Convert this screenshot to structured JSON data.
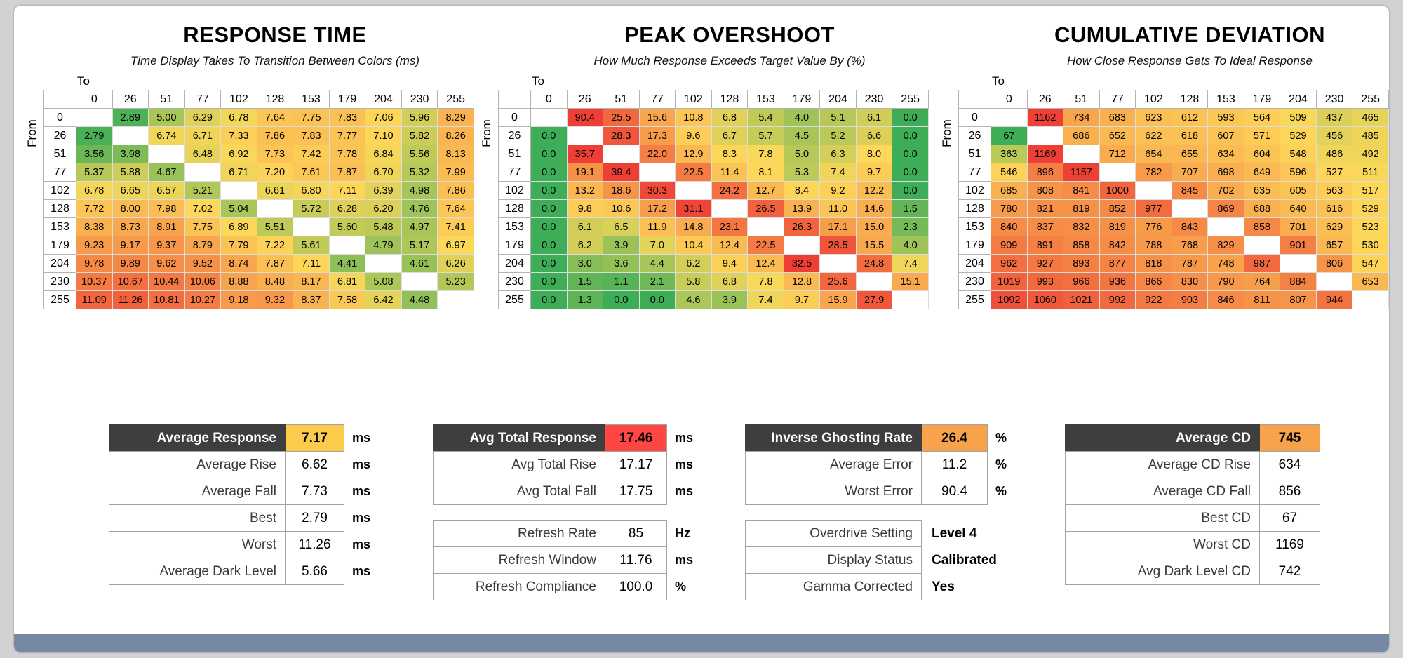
{
  "page": {
    "background_color": "#d2d2d2",
    "panel_color": "#ffffff",
    "footer_bar_color": "#7589a5"
  },
  "chart_data": [
    {
      "type": "heatmap",
      "title": "RESPONSE TIME",
      "subtitle": "Time Display Takes To Transition Between Colors (ms)",
      "x_axis_label": "To",
      "y_axis_label": "From",
      "categories": [
        "0",
        "26",
        "51",
        "77",
        "102",
        "128",
        "153",
        "179",
        "204",
        "230",
        "255"
      ],
      "unit": "ms",
      "decimals": 2,
      "color_scale": {
        "min": 2.5,
        "mid": 7.0,
        "max": 12.5,
        "low_color": "#3ead57",
        "mid_color": "#fdd859",
        "high_color": "#ee3e35"
      },
      "values": [
        [
          null,
          2.89,
          5.0,
          6.29,
          6.78,
          7.64,
          7.75,
          7.83,
          7.06,
          5.96,
          8.29
        ],
        [
          2.79,
          null,
          6.74,
          6.71,
          7.33,
          7.86,
          7.83,
          7.77,
          7.1,
          5.82,
          8.26
        ],
        [
          3.56,
          3.98,
          null,
          6.48,
          6.92,
          7.73,
          7.42,
          7.78,
          6.84,
          5.56,
          8.13
        ],
        [
          5.37,
          5.88,
          4.67,
          null,
          6.71,
          7.2,
          7.61,
          7.87,
          6.7,
          5.32,
          7.99
        ],
        [
          6.78,
          6.65,
          6.57,
          5.21,
          null,
          6.61,
          6.8,
          7.11,
          6.39,
          4.98,
          7.86
        ],
        [
          7.72,
          8.0,
          7.98,
          7.02,
          5.04,
          null,
          5.72,
          6.28,
          6.2,
          4.76,
          7.64
        ],
        [
          8.38,
          8.73,
          8.91,
          7.75,
          6.89,
          5.51,
          null,
          5.6,
          5.48,
          4.97,
          7.41
        ],
        [
          9.23,
          9.17,
          9.37,
          8.79,
          7.79,
          7.22,
          5.61,
          null,
          4.79,
          5.17,
          6.97
        ],
        [
          9.78,
          9.89,
          9.62,
          9.52,
          8.74,
          7.87,
          7.11,
          4.41,
          null,
          4.61,
          6.26
        ],
        [
          10.37,
          10.67,
          10.44,
          10.06,
          8.88,
          8.48,
          8.17,
          6.81,
          5.08,
          null,
          5.23
        ],
        [
          11.09,
          11.26,
          10.81,
          10.27,
          9.18,
          9.32,
          8.37,
          7.58,
          6.42,
          4.48,
          null
        ]
      ]
    },
    {
      "type": "heatmap",
      "title": "PEAK OVERSHOOT",
      "subtitle": "How Much Response Exceeds Target Value By (%)",
      "x_axis_label": "To",
      "y_axis_label": "From",
      "categories": [
        "0",
        "26",
        "51",
        "77",
        "102",
        "128",
        "153",
        "179",
        "204",
        "230",
        "255"
      ],
      "unit": "%",
      "decimals": 1,
      "color_scale": {
        "min": 0,
        "mid": 8,
        "max": 32,
        "low_color": "#3ead57",
        "mid_color": "#fdd859",
        "high_color": "#ee3e35"
      },
      "values": [
        [
          null,
          90.4,
          25.5,
          15.6,
          10.8,
          6.8,
          5.4,
          4.0,
          5.1,
          6.1,
          0.0
        ],
        [
          0.0,
          null,
          28.3,
          17.3,
          9.6,
          6.7,
          5.7,
          4.5,
          5.2,
          6.6,
          0.0
        ],
        [
          0.0,
          35.7,
          null,
          22.0,
          12.9,
          8.3,
          7.8,
          5.0,
          6.3,
          8.0,
          0.0
        ],
        [
          0.0,
          19.1,
          39.4,
          null,
          22.5,
          11.4,
          8.1,
          5.3,
          7.4,
          9.7,
          0.0
        ],
        [
          0.0,
          13.2,
          18.6,
          30.3,
          null,
          24.2,
          12.7,
          8.4,
          9.2,
          12.2,
          0.0
        ],
        [
          0.0,
          9.8,
          10.6,
          17.2,
          31.1,
          null,
          26.5,
          13.9,
          11.0,
          14.6,
          1.5
        ],
        [
          0.0,
          6.1,
          6.5,
          11.9,
          14.8,
          23.1,
          null,
          26.3,
          17.1,
          15.0,
          2.3
        ],
        [
          0.0,
          6.2,
          3.9,
          7.0,
          10.4,
          12.4,
          22.5,
          null,
          28.5,
          15.5,
          4.0
        ],
        [
          0.0,
          3.0,
          3.6,
          4.4,
          6.2,
          9.4,
          12.4,
          32.5,
          null,
          24.8,
          7.4
        ],
        [
          0.0,
          1.5,
          1.1,
          2.1,
          5.8,
          6.8,
          7.8,
          12.8,
          25.6,
          null,
          15.1
        ],
        [
          0.0,
          1.3,
          0.0,
          0.0,
          4.6,
          3.9,
          7.4,
          9.7,
          15.9,
          27.9,
          null
        ]
      ]
    },
    {
      "type": "heatmap",
      "title": "CUMULATIVE DEVIATION",
      "subtitle": "How Close Response Gets To Ideal Response",
      "x_axis_label": "To",
      "y_axis_label": "From",
      "categories": [
        "0",
        "26",
        "51",
        "77",
        "102",
        "128",
        "153",
        "179",
        "204",
        "230",
        "255"
      ],
      "unit": "",
      "decimals": 0,
      "color_scale": {
        "min": 67,
        "mid": 520,
        "max": 1170,
        "low_color": "#3ead57",
        "mid_color": "#fdd859",
        "high_color": "#ee3e35"
      },
      "values": [
        [
          null,
          1162,
          734,
          683,
          623,
          612,
          593,
          564,
          509,
          437,
          465
        ],
        [
          67,
          null,
          686,
          652,
          622,
          618,
          607,
          571,
          529,
          456,
          485
        ],
        [
          363,
          1169,
          null,
          712,
          654,
          655,
          634,
          604,
          548,
          486,
          492
        ],
        [
          546,
          896,
          1157,
          null,
          782,
          707,
          698,
          649,
          596,
          527,
          511
        ],
        [
          685,
          808,
          841,
          1000,
          null,
          845,
          702,
          635,
          605,
          563,
          517
        ],
        [
          780,
          821,
          819,
          852,
          977,
          null,
          869,
          688,
          640,
          616,
          529
        ],
        [
          840,
          837,
          832,
          819,
          776,
          843,
          null,
          858,
          701,
          629,
          523
        ],
        [
          909,
          891,
          858,
          842,
          788,
          768,
          829,
          null,
          901,
          657,
          530
        ],
        [
          962,
          927,
          893,
          877,
          818,
          787,
          748,
          987,
          null,
          806,
          547
        ],
        [
          1019,
          993,
          966,
          936,
          866,
          830,
          790,
          764,
          884,
          null,
          653
        ],
        [
          1092,
          1060,
          1021,
          992,
          922,
          903,
          846,
          811,
          807,
          944,
          null
        ]
      ]
    }
  ],
  "summary_tables": [
    {
      "name": "response-summary",
      "rows": [
        {
          "label": "Average Response",
          "value": "7.17",
          "unit": "ms",
          "header": true,
          "value_bg": "#fccb4c"
        },
        {
          "label": "Average Rise",
          "value": "6.62",
          "unit": "ms"
        },
        {
          "label": "Average Fall",
          "value": "7.73",
          "unit": "ms"
        },
        {
          "label": "Best",
          "value": "2.79",
          "unit": "ms"
        },
        {
          "label": "Worst",
          "value": "11.26",
          "unit": "ms"
        },
        {
          "label": "Average Dark Level",
          "value": "5.66",
          "unit": "ms"
        }
      ]
    },
    {
      "name": "total-response-summary",
      "rows": [
        {
          "label": "Avg Total Response",
          "value": "17.46",
          "unit": "ms",
          "header": true,
          "value_bg": "#ff4642"
        },
        {
          "label": "Avg Total Rise",
          "value": "17.17",
          "unit": "ms"
        },
        {
          "label": "Avg Total Fall",
          "value": "17.75",
          "unit": "ms"
        },
        {
          "gap": true
        },
        {
          "label": "Refresh Rate",
          "value": "85",
          "unit": "Hz"
        },
        {
          "label": "Refresh Window",
          "value": "11.76",
          "unit": "ms"
        },
        {
          "label": "Refresh Compliance",
          "value": "100.0",
          "unit": "%"
        }
      ]
    },
    {
      "name": "overshoot-summary",
      "rows": [
        {
          "label": "Inverse Ghosting Rate",
          "value": "26.4",
          "unit": "%",
          "header": true,
          "value_bg": "#f9a24c"
        },
        {
          "label": "Average Error",
          "value": "11.2",
          "unit": "%"
        },
        {
          "label": "Worst Error",
          "value": "90.4",
          "unit": "%"
        },
        {
          "gap": true
        },
        {
          "label": "Overdrive Setting",
          "value": "Level 4",
          "plain": true
        },
        {
          "label": "Display Status",
          "value": "Calibrated",
          "plain": true
        },
        {
          "label": "Gamma Corrected",
          "value": "Yes",
          "plain": true
        }
      ]
    },
    {
      "name": "cd-summary",
      "rows": [
        {
          "label": "Average CD",
          "value": "745",
          "header": true,
          "value_bg": "#f9a24c"
        },
        {
          "label": "Average CD Rise",
          "value": "634"
        },
        {
          "label": "Average CD Fall",
          "value": "856"
        },
        {
          "label": "Best CD",
          "value": "67"
        },
        {
          "label": "Worst CD",
          "value": "1169"
        },
        {
          "label": "Avg Dark Level CD",
          "value": "742"
        }
      ]
    }
  ]
}
